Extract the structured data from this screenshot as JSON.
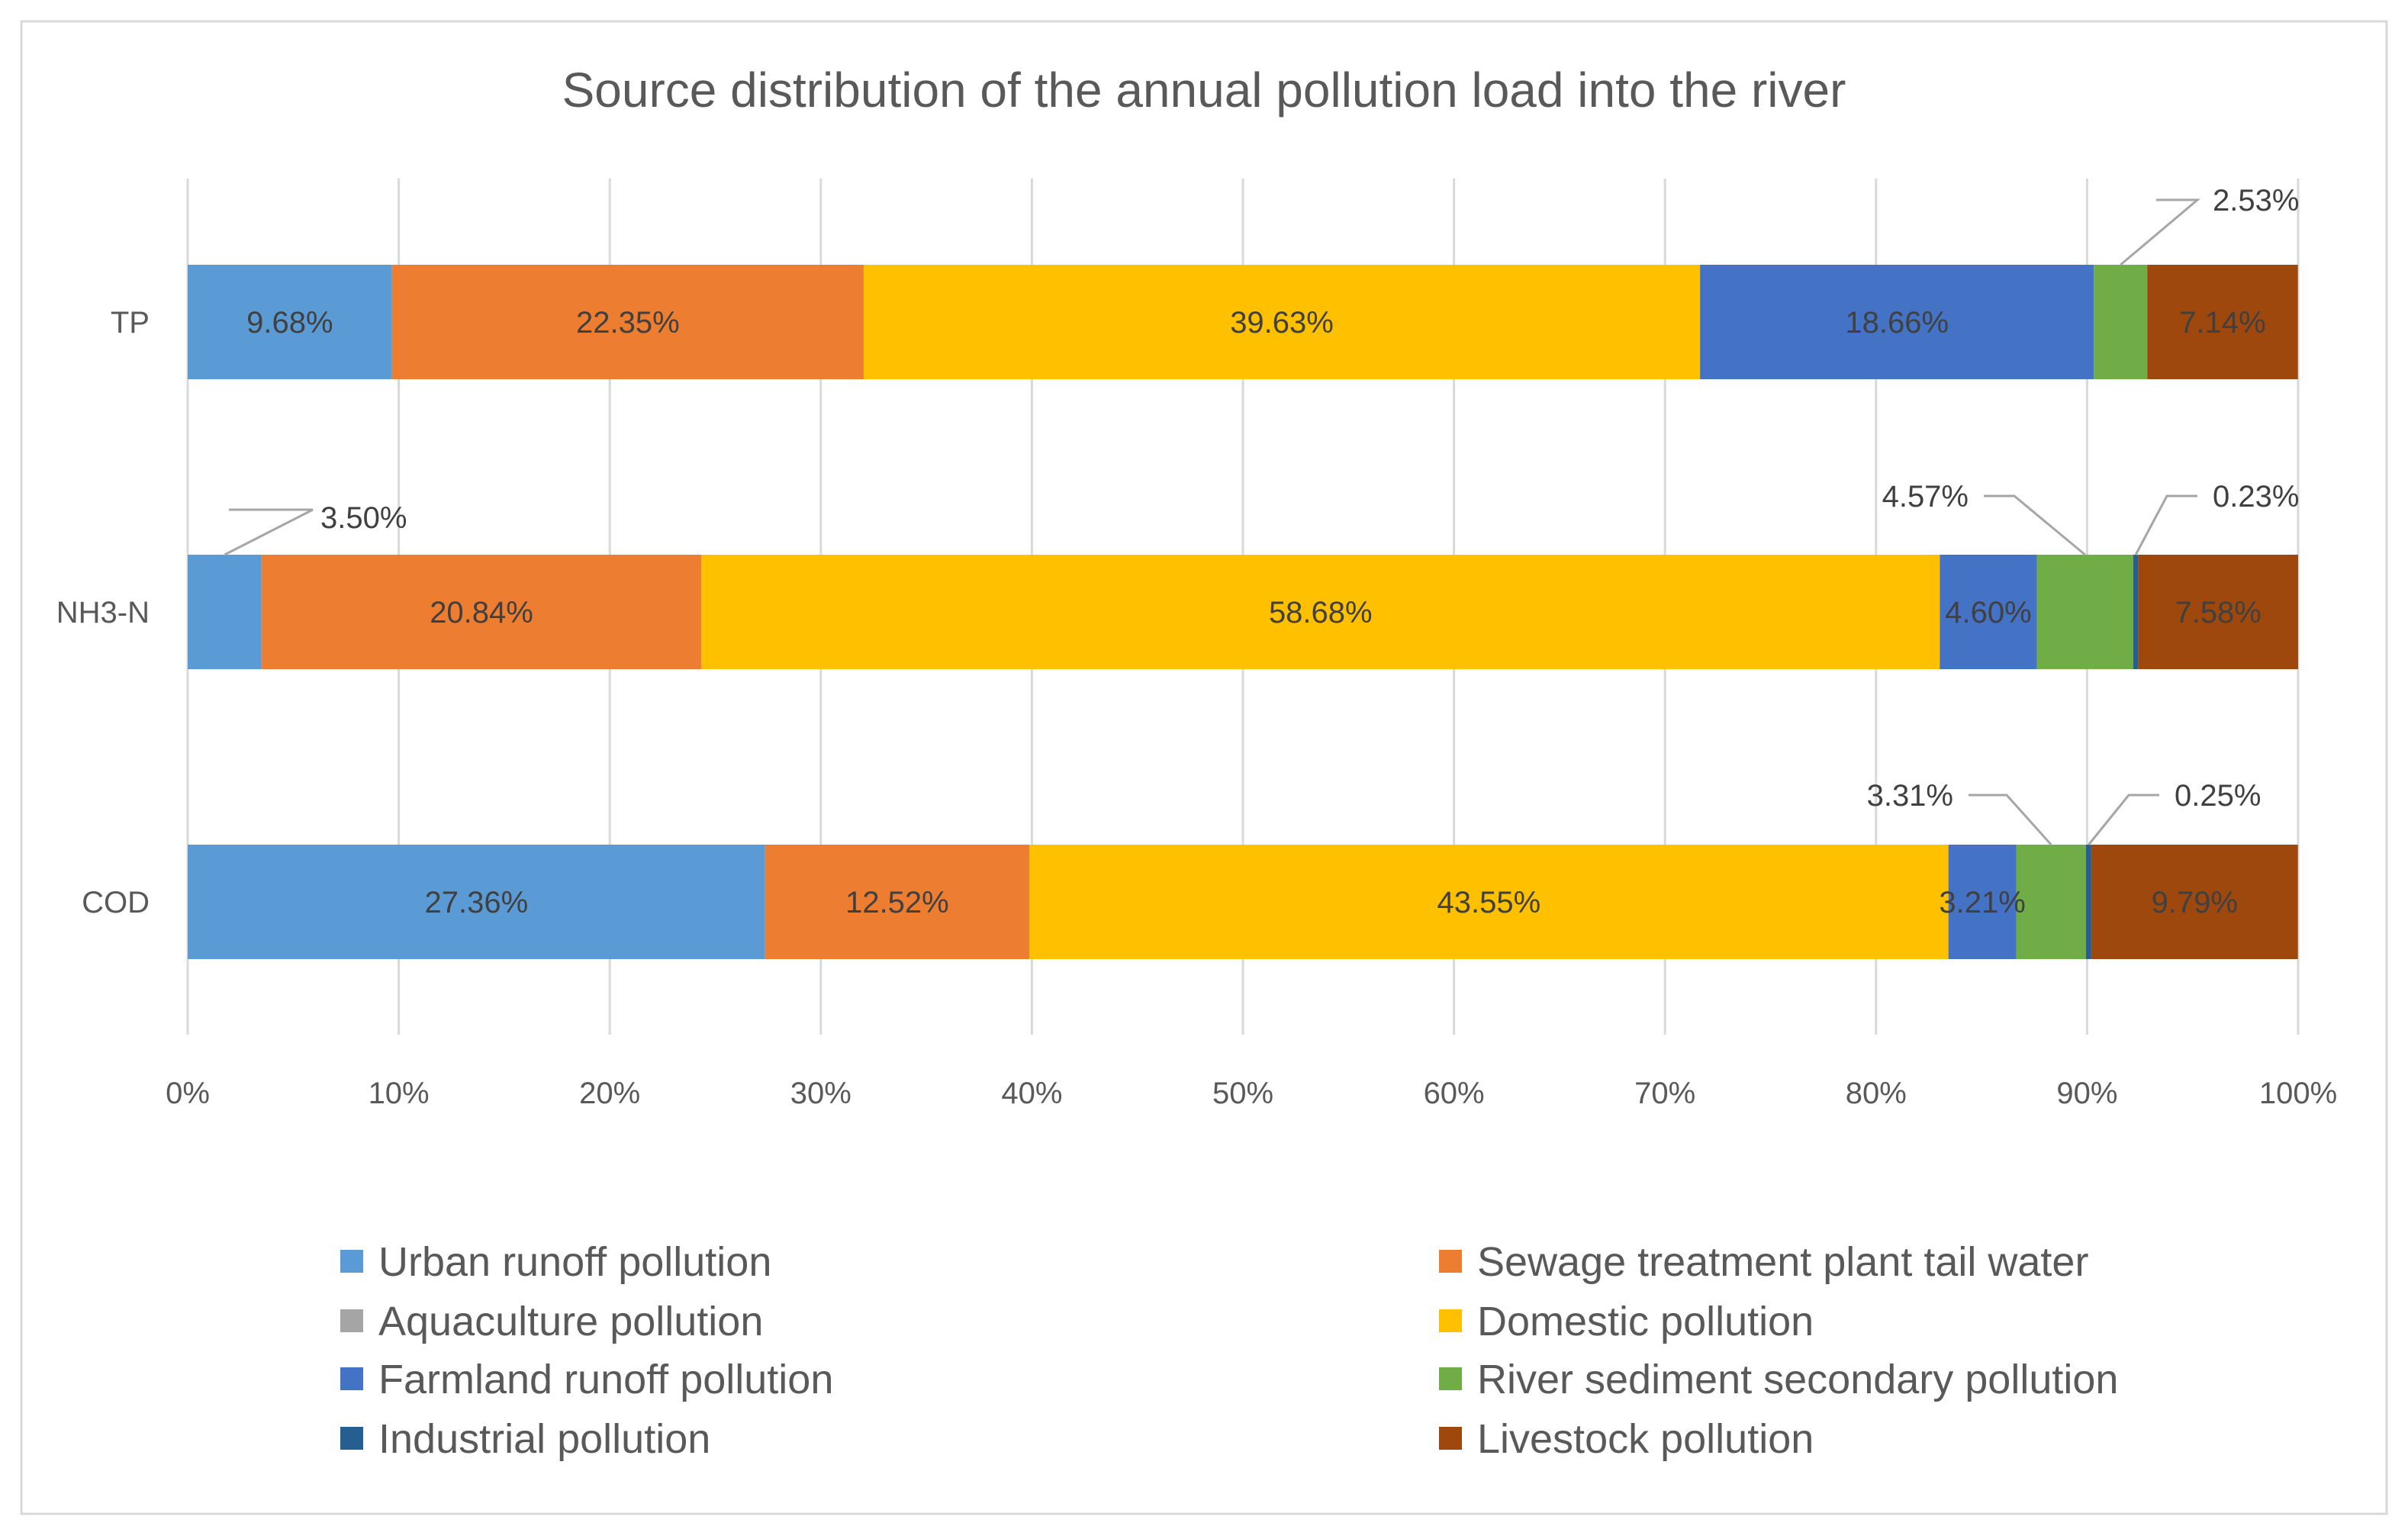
{
  "chart_data": {
    "type": "bar",
    "orientation": "horizontal",
    "stacked": "percent",
    "title": "Source distribution of the annual pollution load into the river",
    "categories": [
      "TP",
      "NH3-N",
      "COD"
    ],
    "x_ticks": [
      "0%",
      "10%",
      "20%",
      "30%",
      "40%",
      "50%",
      "60%",
      "70%",
      "80%",
      "90%",
      "100%"
    ],
    "xlim": [
      0,
      100
    ],
    "grid": true,
    "legend_position": "bottom",
    "series": [
      {
        "name": "Urban runoff pollution",
        "color": "#5b9bd5",
        "values": [
          9.68,
          3.5,
          27.36
        ],
        "labels": [
          "9.68%",
          "3.50%",
          "27.36%"
        ],
        "callout": [
          false,
          true,
          false
        ]
      },
      {
        "name": "Sewage treatment plant tail water",
        "color": "#ed7d31",
        "values": [
          22.35,
          20.84,
          12.52
        ],
        "labels": [
          "22.35%",
          "20.84%",
          "12.52%"
        ],
        "callout": [
          false,
          false,
          false
        ]
      },
      {
        "name": "Aquaculture pollution",
        "color": "#a5a5a5",
        "values": [
          0,
          0,
          0
        ],
        "labels": [
          "",
          "",
          ""
        ],
        "callout": [
          false,
          false,
          false
        ]
      },
      {
        "name": "Domestic pollution",
        "color": "#ffc000",
        "values": [
          39.63,
          58.68,
          43.55
        ],
        "labels": [
          "39.63%",
          "58.68%",
          "43.55%"
        ],
        "callout": [
          false,
          false,
          false
        ]
      },
      {
        "name": "Farmland runoff pollution",
        "color": "#4472c4",
        "values": [
          18.66,
          4.6,
          3.21
        ],
        "labels": [
          "18.66%",
          "4.60%",
          "3.21%"
        ],
        "callout": [
          false,
          false,
          false
        ]
      },
      {
        "name": "River sediment secondary pollution",
        "color": "#70ad47",
        "values": [
          2.53,
          4.57,
          3.31
        ],
        "labels": [
          "2.53%",
          "4.57%",
          "3.31%"
        ],
        "callout": [
          true,
          true,
          true
        ]
      },
      {
        "name": "Industrial pollution",
        "color": "#255e91",
        "values": [
          0,
          0.23,
          0.25
        ],
        "labels": [
          "",
          "0.23%",
          "0.25%"
        ],
        "callout": [
          false,
          true,
          true
        ]
      },
      {
        "name": "Livestock pollution",
        "color": "#9e480e",
        "values": [
          7.14,
          7.58,
          9.79
        ],
        "labels": [
          "7.14%",
          "7.58%",
          "9.79%"
        ],
        "callout": [
          false,
          false,
          false
        ]
      }
    ],
    "legend_order": [
      "Urban runoff pollution",
      "Sewage treatment plant tail water",
      "Aquaculture pollution",
      "Domestic pollution",
      "Farmland runoff pollution",
      "River sediment secondary pollution",
      "Industrial pollution",
      "Livestock pollution"
    ]
  }
}
